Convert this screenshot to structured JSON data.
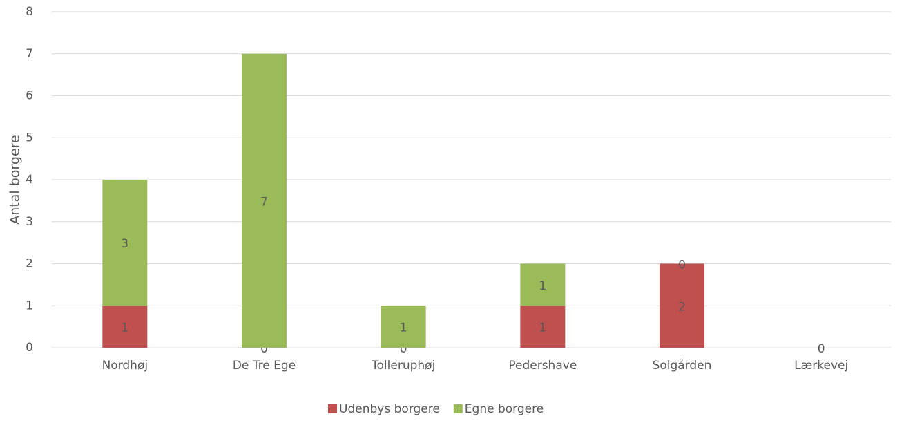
{
  "chart_data": {
    "type": "stacked_bar",
    "y_label": "Antal borgere",
    "categories": [
      "Nordhøj",
      "De Tre Ege",
      "Tolleruphøj",
      "Pedershave",
      "Solgården",
      "Lærkevej"
    ],
    "series": [
      {
        "name": "Udenbys borgere",
        "color": "#c0504d",
        "values": [
          1,
          0,
          0,
          1,
          2,
          0
        ]
      },
      {
        "name": "Egne borgere",
        "color": "#9bbb59",
        "values": [
          3,
          7,
          1,
          1,
          0,
          null
        ]
      }
    ],
    "ylim": [
      0,
      8
    ],
    "yticks": [
      0,
      1,
      2,
      3,
      4,
      5,
      6,
      7,
      8
    ],
    "grid": true,
    "legend": "bottom"
  }
}
